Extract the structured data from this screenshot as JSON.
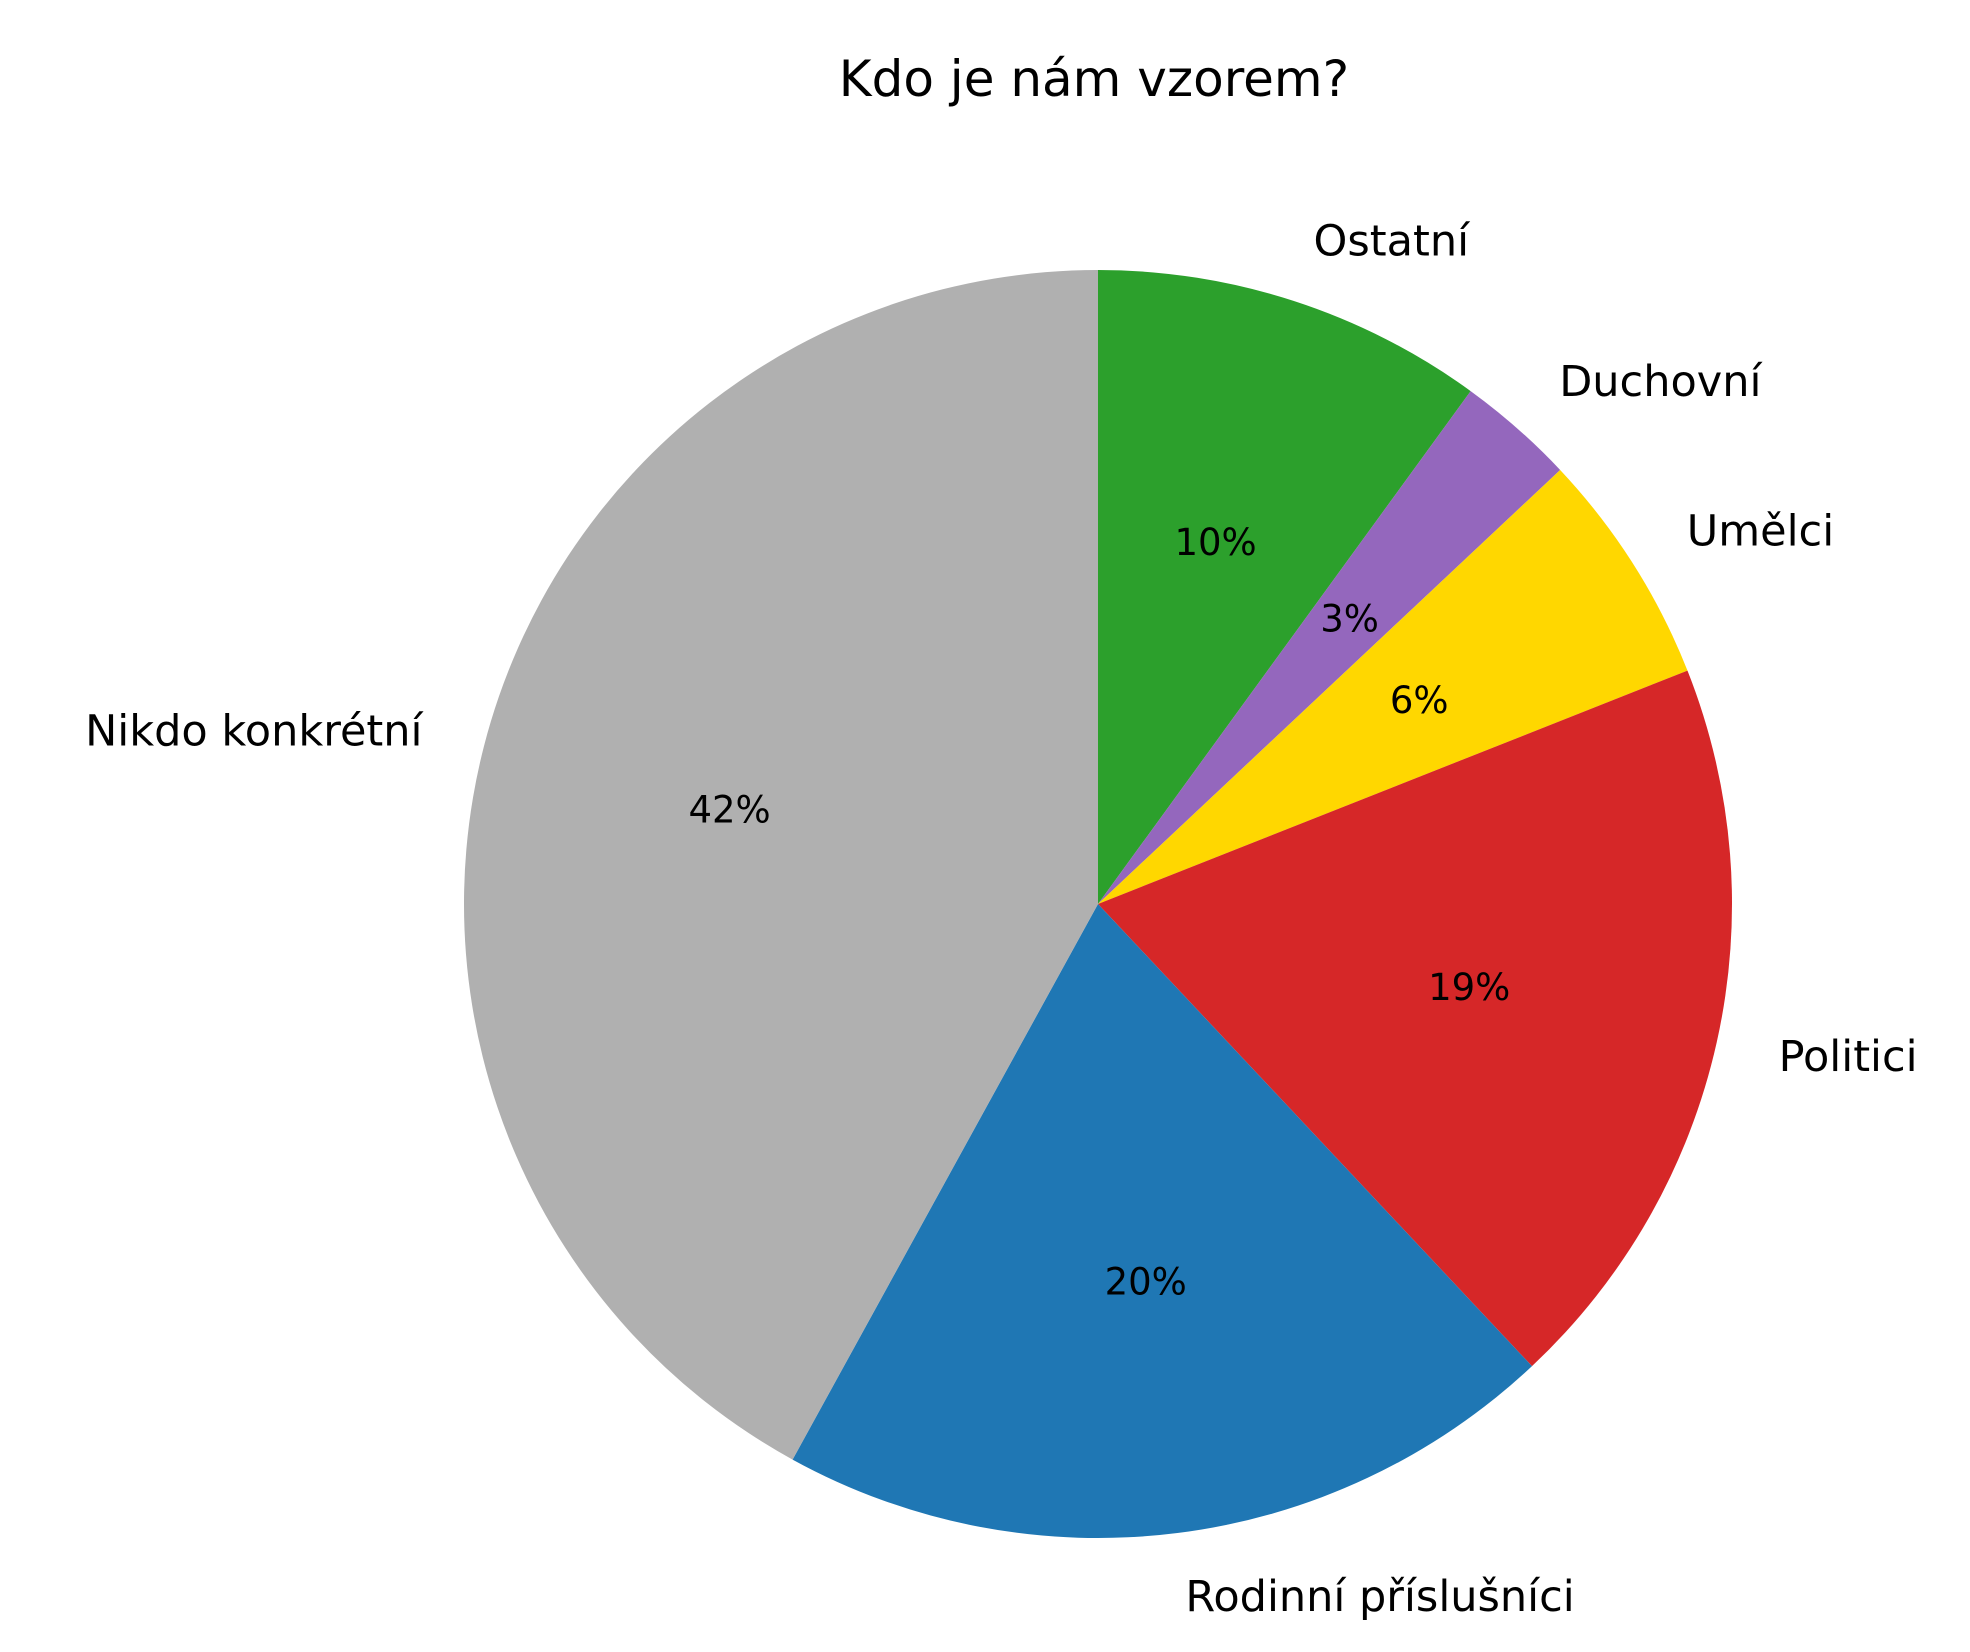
{
  "chart_data": {
    "type": "pie",
    "title": "Kdo je nám vzorem?",
    "start_angle_deg": 90,
    "direction": "clockwise",
    "slices": [
      {
        "label": "Ostatní",
        "value": 10,
        "pct_label": "10%",
        "color": "#2ca02c"
      },
      {
        "label": "Duchovní",
        "value": 3,
        "pct_label": "3%",
        "color": "#9467bd"
      },
      {
        "label": "Umělci",
        "value": 6,
        "pct_label": "6%",
        "color": "#ffd700"
      },
      {
        "label": "Politici",
        "value": 19,
        "pct_label": "19%",
        "color": "#d62728"
      },
      {
        "label": "Rodinní příslušníci",
        "value": 20,
        "pct_label": "20%",
        "color": "#1f77b4"
      },
      {
        "label": "Nikdo konkrétní",
        "value": 42,
        "pct_label": "42%",
        "color": "#b0b0b0"
      }
    ],
    "categories": [
      "Ostatní",
      "Duchovní",
      "Umělci",
      "Politici",
      "Rodinní příslušníci",
      "Nikdo konkrétní"
    ],
    "values": [
      10,
      3,
      6,
      19,
      20,
      42
    ],
    "legend": "none (labels drawn outside slices)"
  }
}
